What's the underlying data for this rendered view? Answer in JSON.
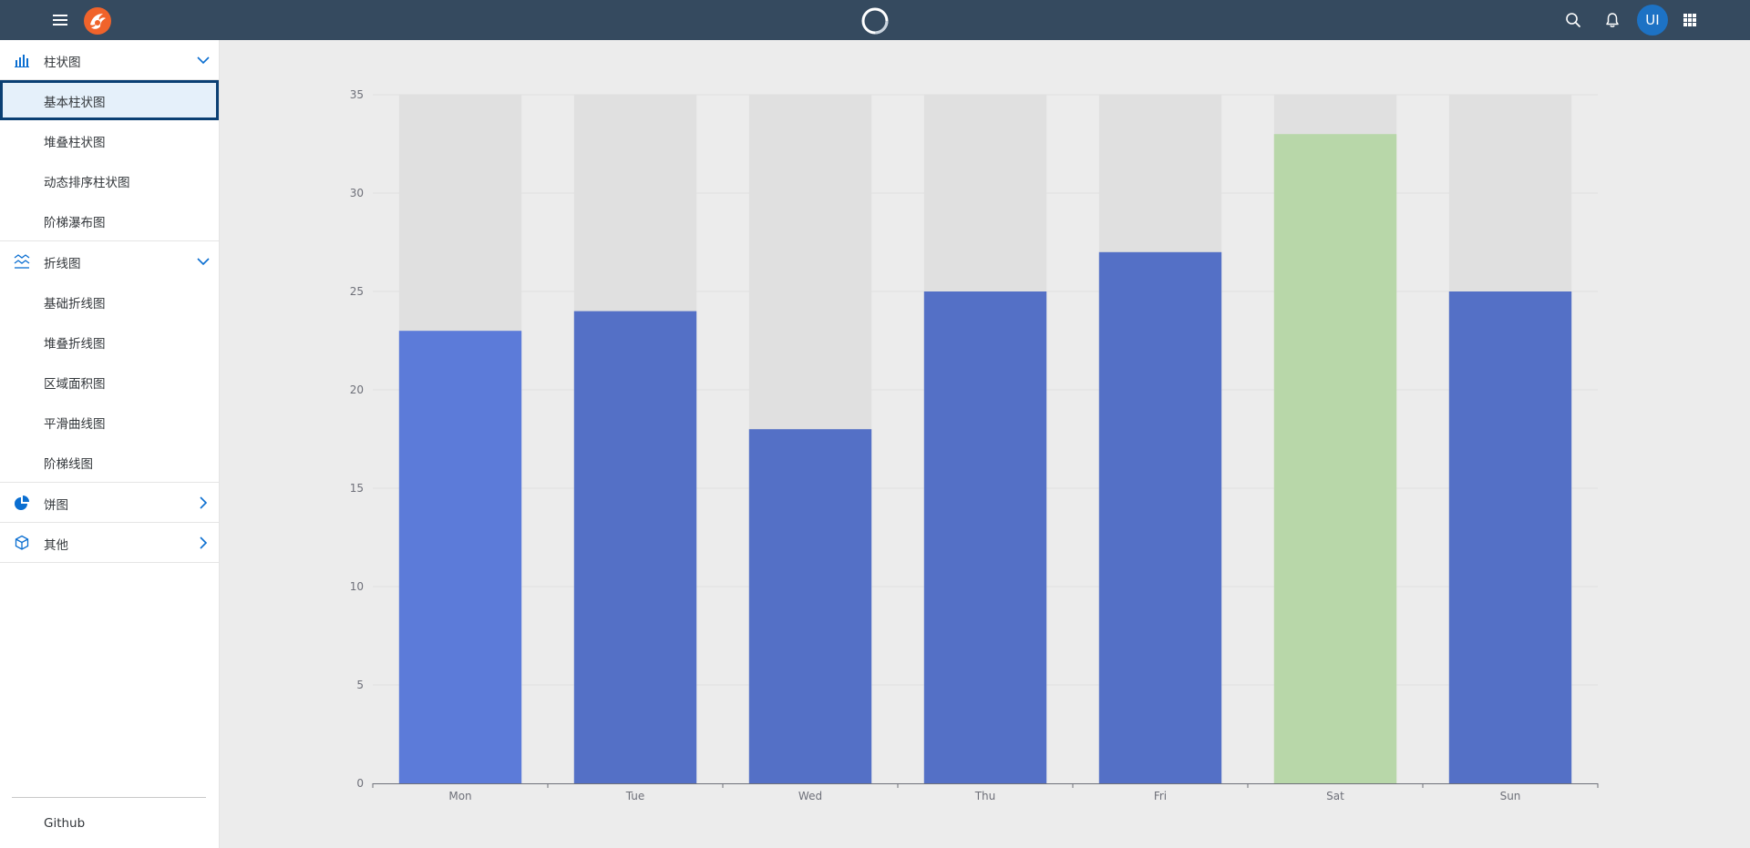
{
  "topbar": {
    "menu_icon": "hamburger-menu-icon",
    "logo_icon": "phoenix-logo-icon",
    "busy_icon": "busy-indicator-icon",
    "search_icon": "search-icon",
    "notification_icon": "bell-icon",
    "avatar_initials": "UI",
    "apps_icon": "grid-apps-icon",
    "background_color": "#354a5f",
    "avatar_color": "#1d72c4"
  },
  "sidebar": {
    "groups": [
      {
        "label": "柱状图",
        "icon": "bar-chart-icon",
        "expanded": true,
        "items": [
          "基本柱状图",
          "堆叠柱状图",
          "动态排序柱状图",
          "阶梯瀑布图"
        ],
        "selected_index": 0
      },
      {
        "label": "折线图",
        "icon": "line-chart-icon",
        "expanded": true,
        "items": [
          "基础折线图",
          "堆叠折线图",
          "区域面积图",
          "平滑曲线图",
          "阶梯线图"
        ]
      },
      {
        "label": "饼图",
        "icon": "pie-chart-icon",
        "expanded": false,
        "items": []
      },
      {
        "label": "其他",
        "icon": "other-chart-icon",
        "expanded": false,
        "items": []
      }
    ],
    "footer_link": "Github",
    "selected_color": "#0a3f73"
  },
  "chart_data": {
    "type": "bar",
    "categories": [
      "Mon",
      "Tue",
      "Wed",
      "Thu",
      "Fri",
      "Sat",
      "Sun"
    ],
    "values": [
      23,
      24,
      18,
      25,
      27,
      33,
      25
    ],
    "background_bar_value": 35,
    "y_ticks": [
      0,
      5,
      10,
      15,
      20,
      25,
      30,
      35
    ],
    "ylim": [
      0,
      35
    ],
    "title": "",
    "xlabel": "",
    "ylabel": "",
    "grid": true,
    "colors": {
      "bar": "#5470c6",
      "highlight_bar": "#b8d7a9",
      "hover_bar": "#5c7bd9",
      "background_bar": "#e0e0e0",
      "grid_line": "#e0e0e0",
      "axis": "#6e7079"
    },
    "highlight_index": 5,
    "hover_index": 0
  }
}
